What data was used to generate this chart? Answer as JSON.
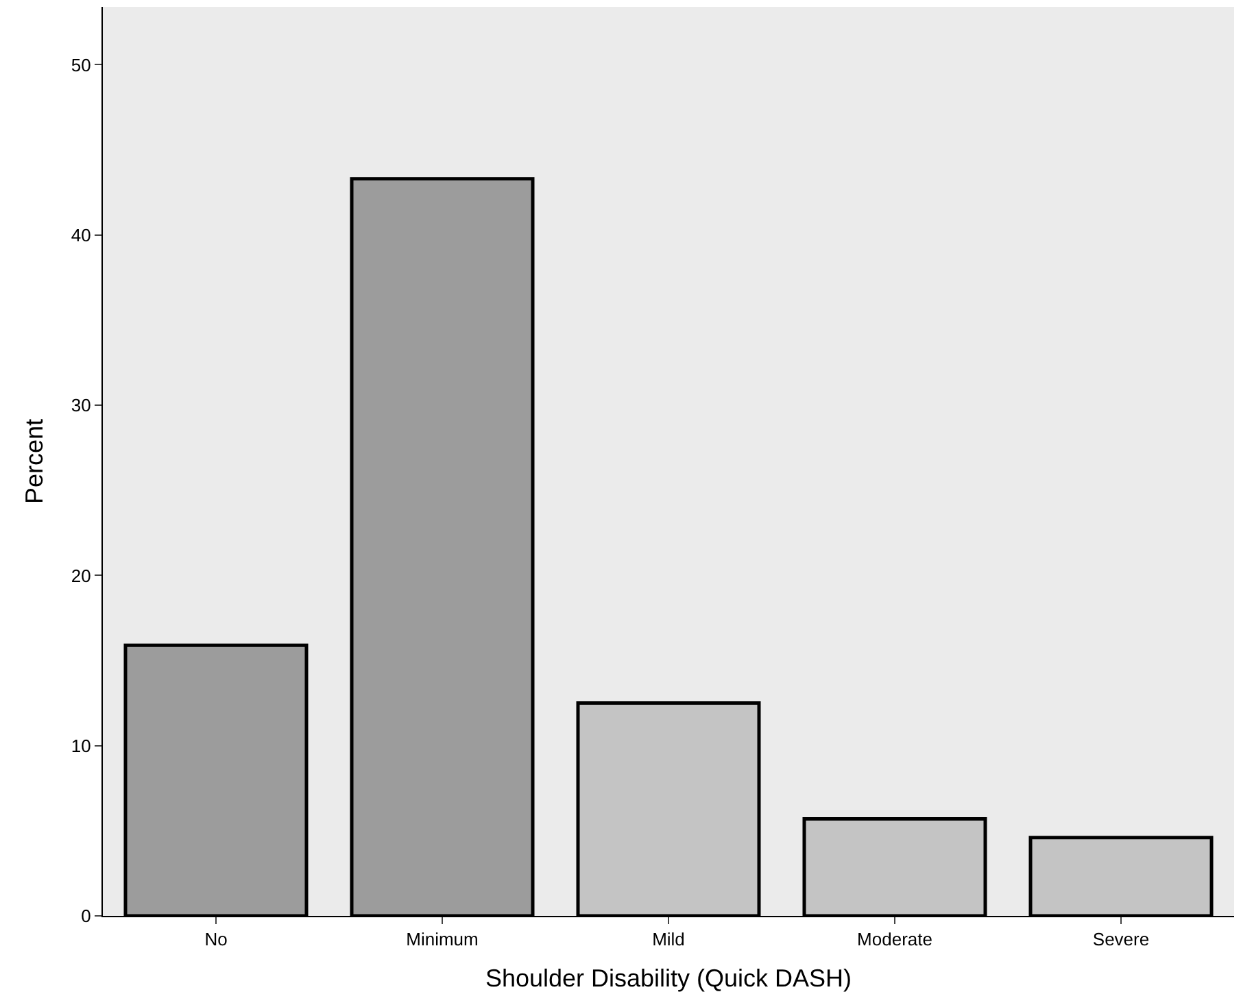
{
  "chart_data": {
    "type": "bar",
    "xlabel": "Shoulder Disability (Quick DASH)",
    "ylabel": "Percent",
    "categories": [
      "No",
      "Minimum",
      "Mild",
      "Moderate",
      "Severe"
    ],
    "values": [
      15.9,
      43.3,
      12.5,
      5.7,
      4.6
    ],
    "colors": [
      "#9c9c9c",
      "#9c9c9c",
      "#c4c4c4",
      "#c4c4c4",
      "#c4c4c4"
    ],
    "ylim": [
      0,
      53.4
    ],
    "yticks": [
      0,
      10,
      20,
      30,
      40,
      50
    ]
  }
}
